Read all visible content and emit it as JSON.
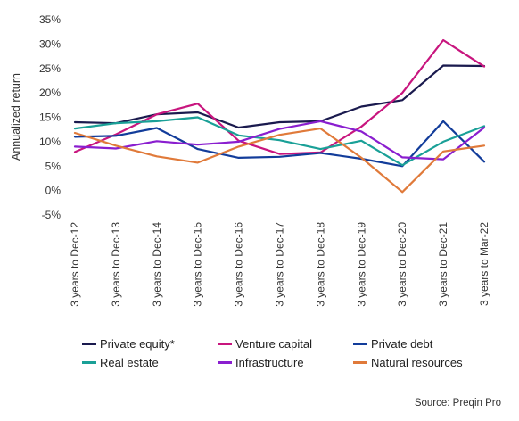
{
  "chart_data": {
    "type": "line",
    "ylabel": "Annualized return",
    "xlabel": "",
    "ylim": [
      -5,
      35
    ],
    "yticks": [
      -5,
      0,
      5,
      10,
      15,
      20,
      25,
      30,
      35
    ],
    "ytick_labels": [
      "-5%",
      "0%",
      "5%",
      "10%",
      "15%",
      "20%",
      "25%",
      "30%",
      "35%"
    ],
    "grid": false,
    "legend_position": "bottom",
    "categories": [
      "3 years to Dec-12",
      "3 years to Dec-13",
      "3 years to Dec-14",
      "3 years to Dec-15",
      "3 years to Dec-16",
      "3 years to Dec-17",
      "3 years to Dec-18",
      "3 years to Dec-19",
      "3 years to Dec-20",
      "3 years to Dec-21",
      "3 years to Mar-22"
    ],
    "series": [
      {
        "name": "Private equity*",
        "color": "#1a1a4e",
        "values": [
          14.0,
          13.8,
          15.6,
          16.0,
          12.9,
          14.0,
          14.2,
          17.2,
          18.5,
          25.6,
          25.5
        ]
      },
      {
        "name": "Venture capital",
        "color": "#c8157e",
        "values": [
          7.9,
          11.5,
          15.6,
          17.8,
          10.2,
          7.5,
          7.8,
          13.1,
          20.0,
          30.8,
          25.4
        ]
      },
      {
        "name": "Private debt",
        "color": "#123c9a",
        "values": [
          11.0,
          11.2,
          12.8,
          8.5,
          6.7,
          6.9,
          7.7,
          6.5,
          5.0,
          14.2,
          5.9
        ]
      },
      {
        "name": "Real estate",
        "color": "#1aa097",
        "values": [
          12.7,
          13.8,
          14.2,
          15.0,
          11.3,
          10.3,
          8.5,
          10.2,
          5.2,
          10.0,
          13.2
        ]
      },
      {
        "name": "Infrastructure",
        "color": "#8a1ecf",
        "values": [
          9.0,
          8.6,
          10.1,
          9.4,
          10.0,
          12.6,
          14.2,
          12.1,
          6.8,
          6.4,
          12.9
        ]
      },
      {
        "name": "Natural resources",
        "color": "#e07a3a",
        "values": [
          11.8,
          9.2,
          7.0,
          5.7,
          9.0,
          11.4,
          12.7,
          6.7,
          -0.3,
          8.0,
          9.2
        ]
      }
    ]
  },
  "source": "Source: Preqin Pro"
}
